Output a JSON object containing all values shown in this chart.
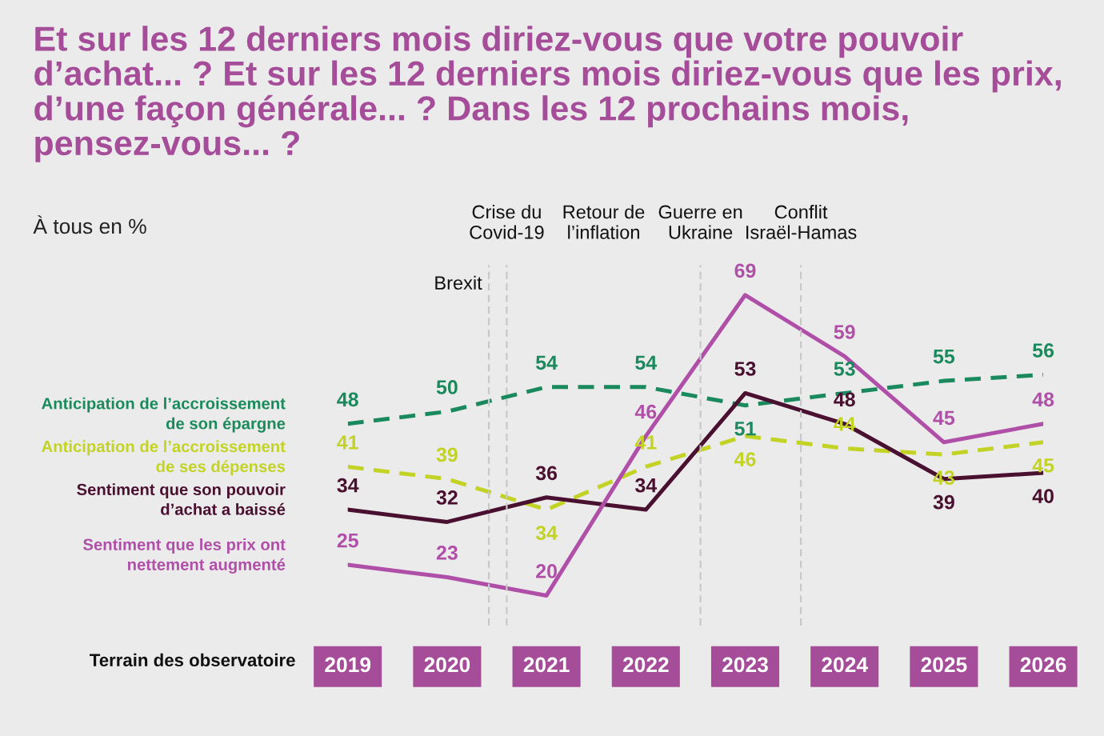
{
  "chart_data": {
    "type": "line",
    "title": "Et sur les 12 derniers mois diriez-vous que votre pouvoir d’achat... ? Et sur les 12 derniers mois diriez-vous que les prix, d’une façon générale... ? Dans les 12 prochains mois, pensez-vous... ?",
    "subtitle": "À tous en %",
    "xlabel": "Terrain des observatoire",
    "x": [
      2019,
      2020,
      2021,
      2022,
      2023,
      2024,
      2025,
      2026
    ],
    "xticks": [
      2019,
      2020,
      2021,
      2022,
      2023,
      2024,
      2025,
      2026
    ],
    "xlim": [
      2019,
      2026
    ],
    "annotations": [
      "Retour de\nl’inflation"
    ],
    "series": [
      {
        "name": "Anticipation de l’accroissement\nde son épargne",
        "color": "#1a8a5e",
        "line_style": "dashed",
        "values": [
          48,
          50,
          54,
          54,
          51,
          53,
          55,
          56
        ]
      },
      {
        "name": "Anticipation de l’accroissement\nde ses dépenses",
        "color": "#c3d325",
        "line_style": "dashed",
        "values": [
          41,
          39,
          34,
          41,
          46,
          44,
          43,
          45
        ]
      },
      {
        "name": "Sentiment que son pouvoir\nd’achat a baissé",
        "color": "#4a1030",
        "line_style": "solid",
        "values": [
          34,
          32,
          36,
          34,
          53,
          48,
          39,
          40
        ]
      },
      {
        "name": "Sentiment que les prix ont\nnettement augmenté",
        "color": "#b04fa8",
        "line_style": "solid",
        "values": [
          25,
          23,
          20,
          46,
          69,
          59,
          45,
          48
        ]
      }
    ],
    "ref_lines": [
      {
        "axis": "x",
        "value": 2020.42,
        "label": "Brexit",
        "line_style": "dashed",
        "color": "#c8c8c8"
      },
      {
        "axis": "x",
        "value": 2020.6,
        "label": "Crise du\nCovid-19",
        "line_style": "dashed",
        "color": "#c8c8c8"
      },
      {
        "axis": "x",
        "value": 2022.55,
        "label": "Guerre en\nUkraine",
        "line_style": "dashed",
        "color": "#c8c8c8"
      },
      {
        "axis": "x",
        "value": 2023.56,
        "label": "Conflit\nIsraël-Hamas",
        "line_style": "dashed",
        "color": "#c8c8c8"
      }
    ],
    "tick_labels": "x",
    "data_labels": true,
    "legend": "left",
    "grid": false,
    "marker": "none"
  }
}
